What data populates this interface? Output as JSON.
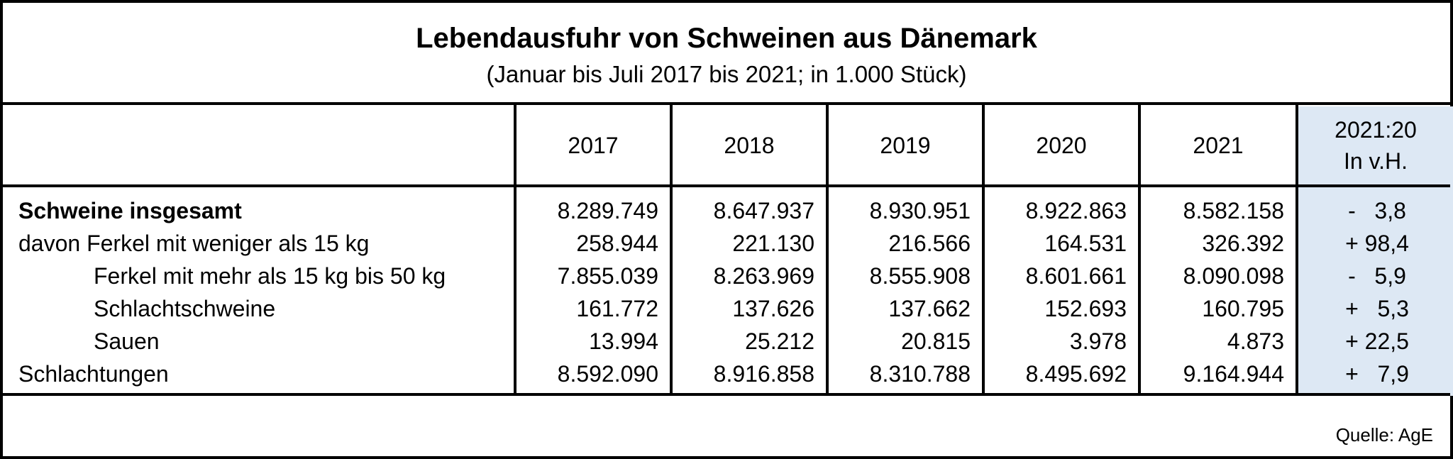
{
  "title": "Lebendausfuhr von Schweinen aus Dänemark",
  "subtitle": "(Januar bis Juli 2017 bis 2021; in 1.000 Stück)",
  "columns": [
    "2017",
    "2018",
    "2019",
    "2020",
    "2021"
  ],
  "change_header": {
    "line1": "2021:20",
    "line2": "In v.H."
  },
  "rows": [
    {
      "label": "Schweine insgesamt",
      "values": [
        "8.289.749",
        "8.647.937",
        "8.930.951",
        "8.922.863",
        "8.582.158"
      ],
      "change": "-   3,8"
    },
    {
      "label": "davon Ferkel mit weniger als 15 kg",
      "values": [
        "258.944",
        "221.130",
        "216.566",
        "164.531",
        "326.392"
      ],
      "change": "+ 98,4"
    },
    {
      "label": "Ferkel mit mehr als 15 kg bis 50 kg",
      "values": [
        "7.855.039",
        "8.263.969",
        "8.555.908",
        "8.601.661",
        "8.090.098"
      ],
      "change": "-   5,9"
    },
    {
      "label": "Schlachtschweine",
      "values": [
        "161.772",
        "137.626",
        "137.662",
        "152.693",
        "160.795"
      ],
      "change": "+   5,3"
    },
    {
      "label": "Sauen",
      "values": [
        "13.994",
        "25.212",
        "20.815",
        "3.978",
        "4.873"
      ],
      "change": "+ 22,5"
    },
    {
      "label": "Schlachtungen",
      "values": [
        "8.592.090",
        "8.916.858",
        "8.310.788",
        "8.495.692",
        "9.164.944"
      ],
      "change": "+   7,9"
    }
  ],
  "source": "Quelle: AgE"
}
